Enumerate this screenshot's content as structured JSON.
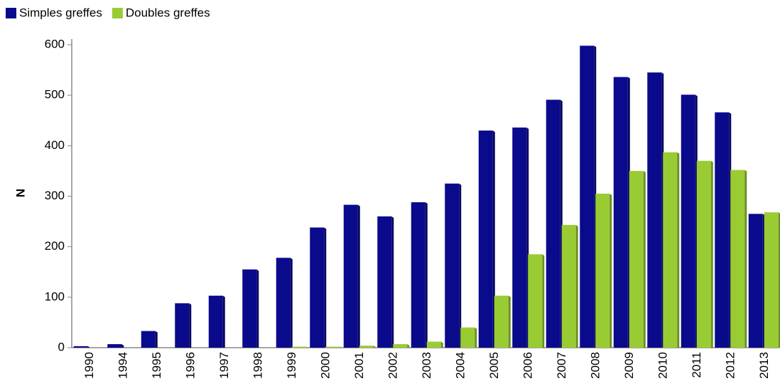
{
  "chart_data": {
    "type": "bar",
    "y_label": "N",
    "categories": [
      "1990",
      "1994",
      "1995",
      "1996",
      "1997",
      "1998",
      "1999",
      "2000",
      "2001",
      "2002",
      "2003",
      "2004",
      "2005",
      "2006",
      "2007",
      "2008",
      "2009",
      "2010",
      "2011",
      "2012",
      "2013"
    ],
    "series": [
      {
        "name": "Simples greffes",
        "color": "#0a0a8c",
        "values": [
          3,
          7,
          33,
          88,
          103,
          155,
          178,
          238,
          283,
          260,
          288,
          325,
          430,
          436,
          491,
          598,
          536,
          545,
          501,
          466,
          265
        ]
      },
      {
        "name": "Doubles greffes",
        "color": "#99cc33",
        "values": [
          0,
          0,
          0,
          0,
          0,
          0,
          2,
          2,
          4,
          7,
          12,
          40,
          103,
          185,
          243,
          305,
          350,
          387,
          370,
          352,
          268
        ]
      }
    ],
    "ylim": [
      0,
      600
    ],
    "yticks": [
      0,
      100,
      200,
      300,
      400,
      500,
      600
    ],
    "legend": "top-left"
  }
}
